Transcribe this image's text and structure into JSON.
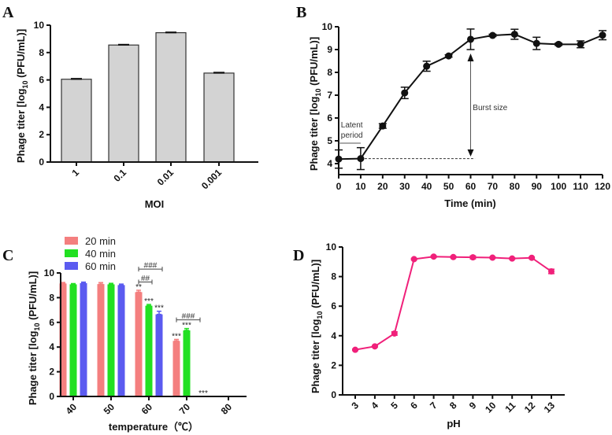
{
  "chart_data": [
    {
      "panel": "A",
      "type": "bar",
      "categories": [
        "1",
        "0.1",
        "0.01",
        "0.001"
      ],
      "values": [
        6.05,
        8.55,
        9.45,
        6.5
      ],
      "errors": [
        0.05,
        0.04,
        0.04,
        0.05
      ],
      "xlabel": "MOI",
      "ylabel": [
        "Phage titer [log",
        "10",
        " (PFU/mL)]"
      ],
      "ylim": [
        0,
        10
      ],
      "yticks": [
        0,
        2,
        4,
        6,
        8,
        10
      ],
      "bar_color": "#d3d3d3"
    },
    {
      "panel": "B",
      "type": "line",
      "x": [
        0,
        10,
        20,
        30,
        40,
        50,
        60,
        70,
        80,
        90,
        100,
        110,
        120
      ],
      "y": [
        4.2,
        4.22,
        5.65,
        7.1,
        8.27,
        8.72,
        9.45,
        9.62,
        9.67,
        9.27,
        9.23,
        9.23,
        9.63
      ],
      "errors": [
        0.4,
        0.48,
        0.1,
        0.25,
        0.22,
        0.05,
        0.45,
        0.05,
        0.22,
        0.27,
        0.05,
        0.15,
        0.2
      ],
      "xlabel": "Time (min)",
      "ylabel": [
        "Phage titer [log",
        "10",
        " (PFU/mL)]"
      ],
      "xlim": [
        0,
        120
      ],
      "ylim": [
        3.5,
        10
      ],
      "yticks": [
        4,
        5,
        6,
        7,
        8,
        9,
        10
      ],
      "annotations": {
        "latent": [
          "Latent",
          "period"
        ],
        "burst": "Burst size"
      }
    },
    {
      "panel": "C",
      "type": "bar",
      "categories": [
        "40",
        "50",
        "60",
        "70",
        "80"
      ],
      "series": [
        {
          "name": "20 min",
          "color": "#f47f7f",
          "values": [
            9.15,
            9.1,
            8.45,
            4.5,
            null
          ],
          "errors": [
            0.08,
            0.12,
            0.15,
            0.12,
            null
          ]
        },
        {
          "name": "40 min",
          "color": "#22e022",
          "values": [
            9.08,
            9.08,
            7.35,
            5.35,
            null
          ],
          "errors": [
            0.06,
            0.08,
            0.1,
            0.15,
            null
          ]
        },
        {
          "name": "60 min",
          "color": "#5b5bf0",
          "values": [
            9.18,
            9.02,
            6.65,
            0,
            null
          ],
          "errors": [
            0.08,
            0.08,
            0.25,
            0,
            null
          ]
        }
      ],
      "significance": {
        "stars": [
          {
            "cat": 2,
            "series": 0,
            "label": "**"
          },
          {
            "cat": 2,
            "series": 1,
            "label": "***"
          },
          {
            "cat": 2,
            "series": 2,
            "label": "***"
          },
          {
            "cat": 3,
            "series": 0,
            "label": "***"
          },
          {
            "cat": 3,
            "series": 1,
            "label": "***"
          },
          {
            "cat": 3,
            "series": 2,
            "label": "***"
          }
        ],
        "brackets": [
          {
            "cat": 2,
            "from": 0,
            "to": 2,
            "label": "###",
            "level": 9.8
          },
          {
            "cat": 2,
            "from": 0,
            "to": 1,
            "label": "##",
            "level": 9.2
          },
          {
            "cat": 3,
            "from": 0,
            "to": 2,
            "label": "###",
            "level": 6.2
          }
        ]
      },
      "xlabel": "temperature（℃）",
      "ylabel": [
        "Phage titer [log",
        "10",
        " (PFU/mL)]"
      ],
      "ylim": [
        0,
        10
      ],
      "yticks": [
        0,
        2,
        4,
        6,
        8,
        10
      ],
      "legend": "top-left"
    },
    {
      "panel": "D",
      "type": "line",
      "x": [
        3,
        4,
        5,
        6,
        7,
        8,
        9,
        10,
        11,
        12,
        13
      ],
      "y": [
        3.05,
        3.28,
        4.15,
        9.18,
        9.35,
        9.32,
        9.3,
        9.28,
        9.22,
        9.27,
        8.35
      ],
      "errors": [
        0.05,
        0.05,
        0.12,
        0.05,
        0.05,
        0.05,
        0.1,
        0.05,
        0.05,
        0.05,
        0.15
      ],
      "xlabel": "pH",
      "ylabel": [
        "Phage titer [log",
        "10",
        " (PFU/mL)]"
      ],
      "ylim": [
        0,
        10
      ],
      "yticks": [
        0,
        2,
        4,
        6,
        8,
        10
      ],
      "color": "#f0207a"
    }
  ]
}
